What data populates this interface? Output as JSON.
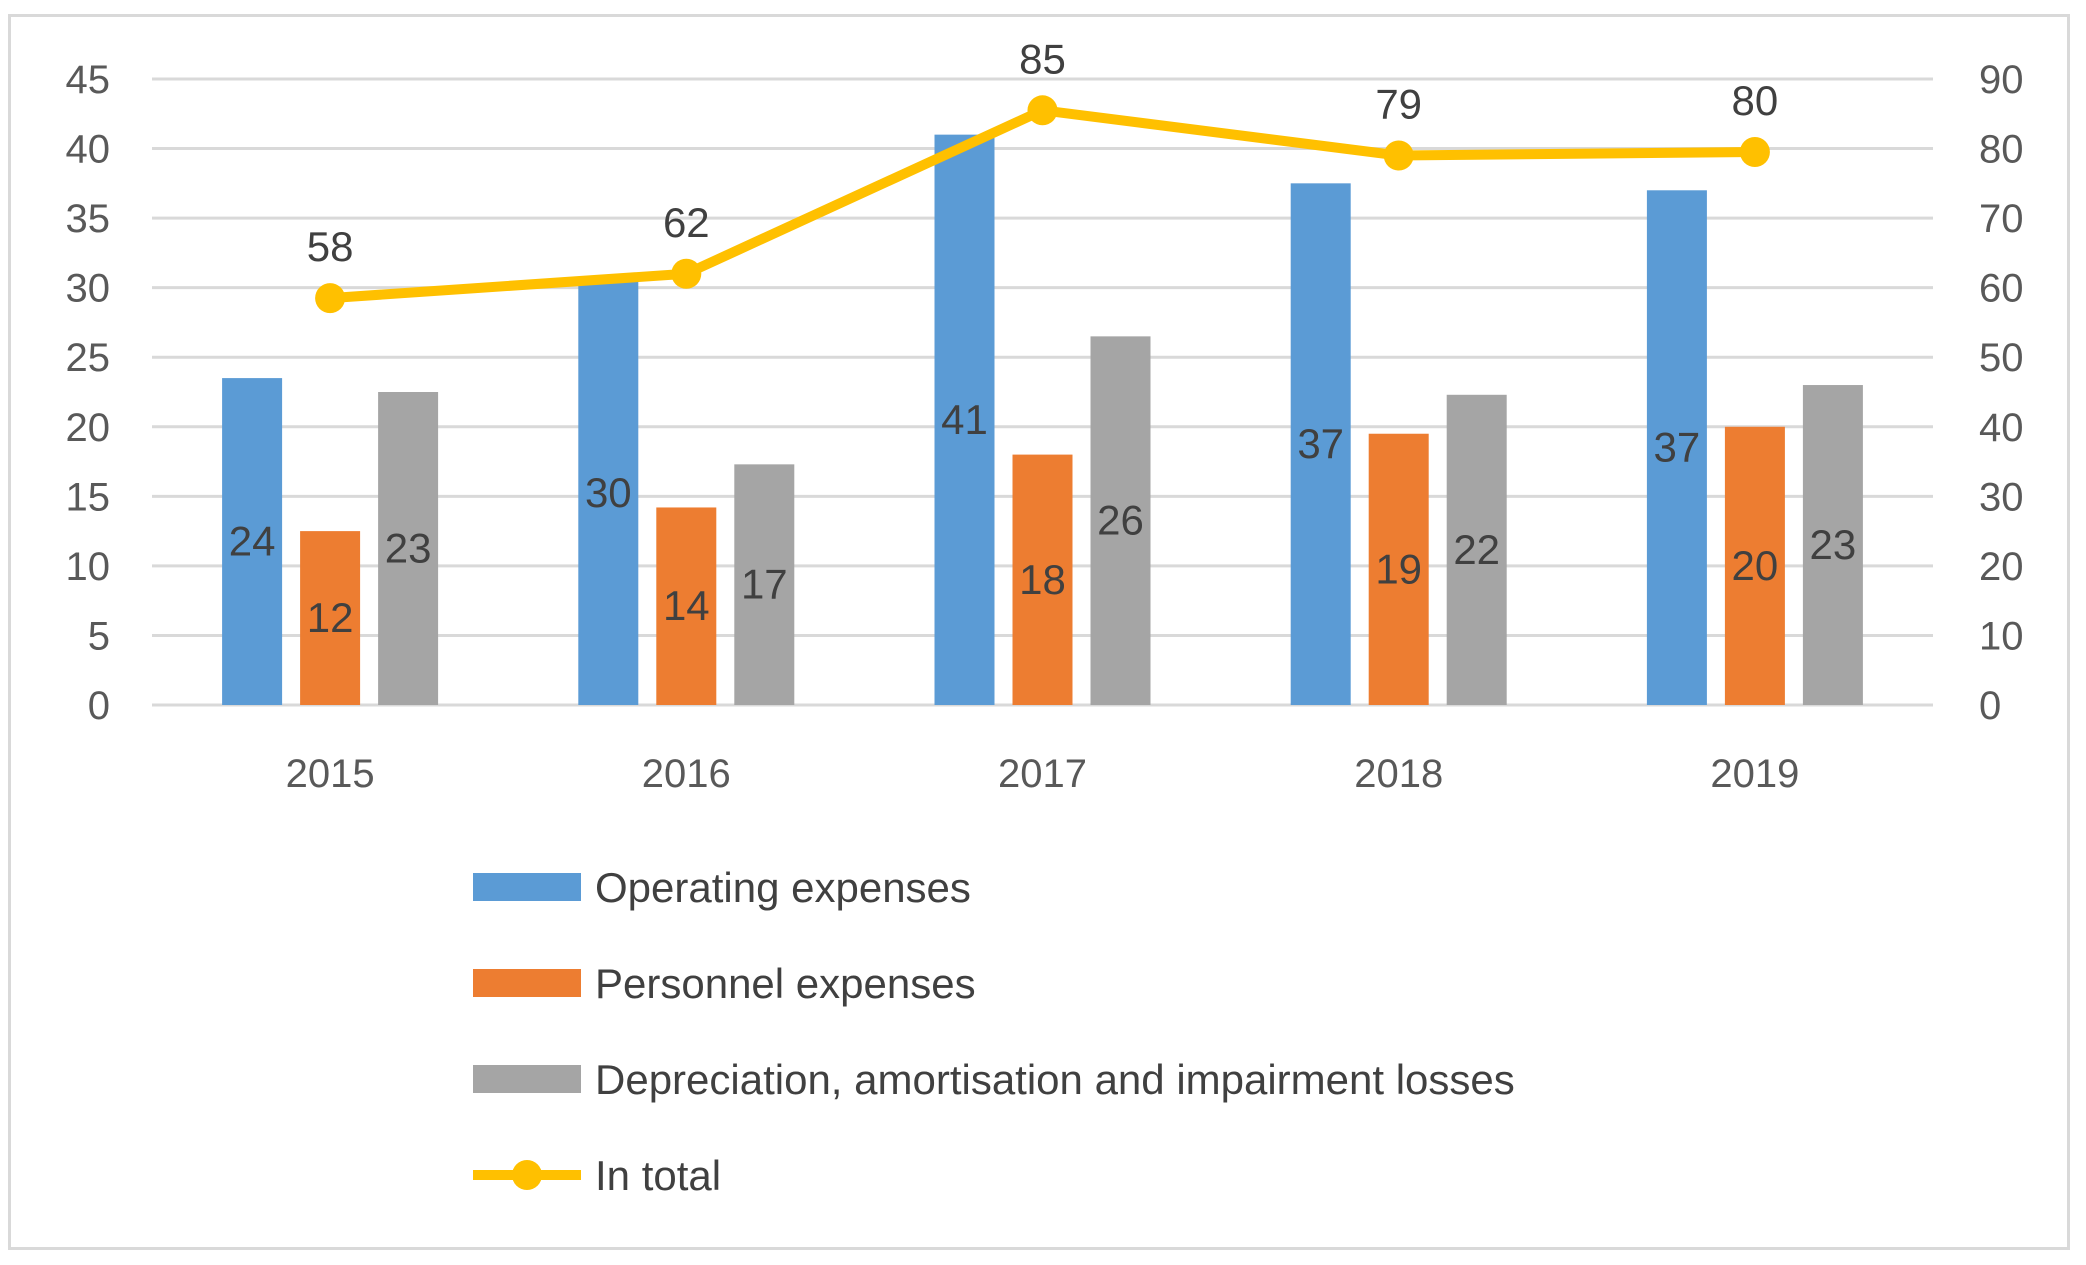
{
  "chart_data": {
    "type": "bar",
    "categories": [
      "2015",
      "2016",
      "2017",
      "2018",
      "2019"
    ],
    "series": [
      {
        "name": "Operating expenses",
        "kind": "bar",
        "axis": "left",
        "color": "#5b9bd5",
        "values": [
          23.5,
          30.5,
          41,
          37.5,
          37
        ],
        "labels": [
          "24",
          "30",
          "41",
          "37",
          "37"
        ]
      },
      {
        "name": "Personnel expenses",
        "kind": "bar",
        "axis": "left",
        "color": "#ed7d31",
        "values": [
          12.5,
          14.2,
          18,
          19.5,
          20
        ],
        "labels": [
          "12",
          "14",
          "18",
          "19",
          "20"
        ]
      },
      {
        "name": "Depreciation, amortisation and impairment losses",
        "kind": "bar",
        "axis": "left",
        "color": "#a5a5a5",
        "values": [
          22.5,
          17.3,
          26.5,
          22.3,
          23
        ],
        "labels": [
          "23",
          "17",
          "26",
          "22",
          "23"
        ]
      },
      {
        "name": "In total",
        "kind": "line",
        "axis": "right",
        "color": "#ffc000",
        "values": [
          58.5,
          62,
          85.5,
          79,
          79.5
        ],
        "labels": [
          "58",
          "62",
          "85",
          "79",
          "80"
        ]
      }
    ],
    "y_left": {
      "min": 0,
      "max": 45,
      "ticks": [
        "0",
        "5",
        "10",
        "15",
        "20",
        "25",
        "30",
        "35",
        "40",
        "45"
      ]
    },
    "y_right": {
      "min": 0,
      "max": 90,
      "ticks": [
        "0",
        "10",
        "20",
        "30",
        "40",
        "50",
        "60",
        "70",
        "80",
        "90"
      ]
    },
    "grid": true,
    "legend_position": "bottom"
  }
}
